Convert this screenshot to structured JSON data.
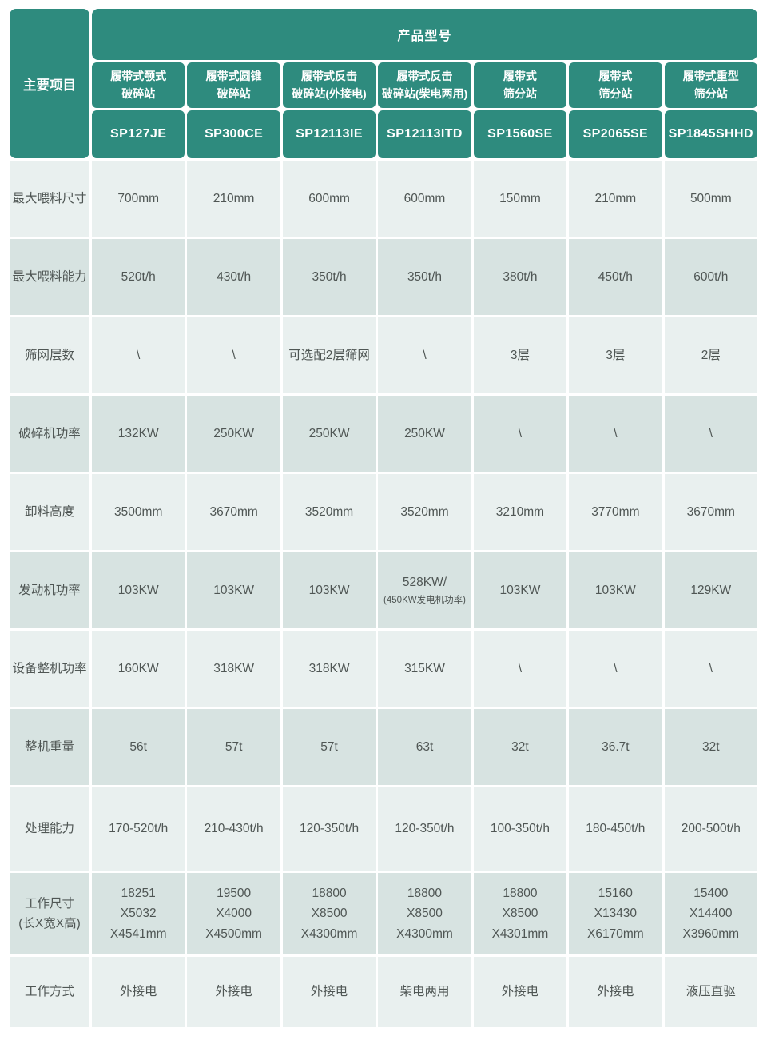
{
  "table": {
    "corner_label": "主要项目",
    "products_header": "产品型号",
    "colors": {
      "header_teal": "#2E8B7E",
      "row_light": "#E9F0EF",
      "row_dark": "#D7E3E1",
      "body_text": "#4F5654",
      "header_text": "#FFFFFF"
    },
    "columns": [
      {
        "type": "履带式颚式\n破碎站",
        "model": "SP127JE"
      },
      {
        "type": "履带式圆锥\n破碎站",
        "model": "SP300CE"
      },
      {
        "type": "履带式反击\n破碎站(外接电)",
        "model": "SP12113IE"
      },
      {
        "type": "履带式反击\n破碎站(柴电两用)",
        "model": "SP12113ITD"
      },
      {
        "type": "履带式\n筛分站",
        "model": "SP1560SE"
      },
      {
        "type": "履带式\n筛分站",
        "model": "SP2065SE"
      },
      {
        "type": "履带式重型\n筛分站",
        "model": "SP1845SHHD"
      }
    ],
    "rows": [
      {
        "label": "最大喂料尺寸",
        "values": [
          "700mm",
          "210mm",
          "600mm",
          "600mm",
          "150mm",
          "210mm",
          "500mm"
        ]
      },
      {
        "label": "最大喂料能力",
        "values": [
          "520t/h",
          "430t/h",
          "350t/h",
          "350t/h",
          "380t/h",
          "450t/h",
          "600t/h"
        ]
      },
      {
        "label": "筛网层数",
        "values": [
          "\\",
          "\\",
          "可选配2层筛网",
          "\\",
          "3层",
          "3层",
          "2层"
        ]
      },
      {
        "label": "破碎机功率",
        "values": [
          "132KW",
          "250KW",
          "250KW",
          "250KW",
          "\\",
          "\\",
          "\\"
        ]
      },
      {
        "label": "卸料高度",
        "values": [
          "3500mm",
          "3670mm",
          "3520mm",
          "3520mm",
          "3210mm",
          "3770mm",
          "3670mm"
        ]
      },
      {
        "label": "发动机功率",
        "values": [
          "103KW",
          "103KW",
          "103KW",
          "528KW/",
          "103KW",
          "103KW",
          "129KW"
        ],
        "note": "(450KW发电机功率)",
        "note_col": 3
      },
      {
        "label": "设备整机功率",
        "values": [
          "160KW",
          "318KW",
          "318KW",
          "315KW",
          "\\",
          "\\",
          "\\"
        ]
      },
      {
        "label": "整机重量",
        "values": [
          "56t",
          "57t",
          "57t",
          "63t",
          "32t",
          "36.7t",
          "32t"
        ]
      },
      {
        "label": "处理能力",
        "values": [
          "170-520t/h",
          "210-430t/h",
          "120-350t/h",
          "120-350t/h",
          "100-350t/h",
          "180-450t/h",
          "200-500t/h"
        ]
      },
      {
        "label": "工作尺寸\n(长X宽X高)",
        "values": [
          "18251\nX5032\nX4541mm",
          "19500\nX4000\nX4500mm",
          "18800\nX8500\nX4300mm",
          "18800\nX8500\nX4300mm",
          "18800\nX8500\nX4301mm",
          "15160\nX13430\nX6170mm",
          "15400\nX14400\nX3960mm"
        ]
      },
      {
        "label": "工作方式",
        "values": [
          "外接电",
          "外接电",
          "外接电",
          "柴电两用",
          "外接电",
          "外接电",
          "液压直驱"
        ]
      }
    ]
  }
}
